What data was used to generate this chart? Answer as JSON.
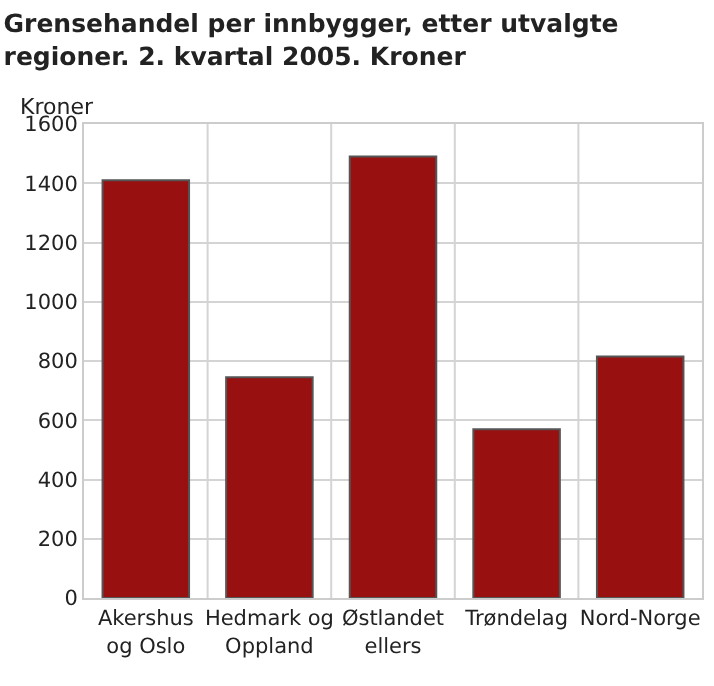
{
  "chart_data": {
    "type": "bar",
    "title": "Grensehandel per innbygger, etter utvalgte regioner. 2. kvartal 2005. Kroner",
    "ylabel": "Kroner",
    "categories": [
      "Akershus og Oslo",
      "Hedmark og Oppland",
      "Østlandet ellers",
      "Trøndelag",
      "Nord-Norge"
    ],
    "values": [
      1410,
      745,
      1490,
      570,
      815
    ],
    "color": "#991010",
    "ylim": [
      0,
      1600
    ],
    "yticks": [
      0,
      200,
      400,
      600,
      800,
      1000,
      1200,
      1400,
      1600
    ],
    "grid": true
  }
}
